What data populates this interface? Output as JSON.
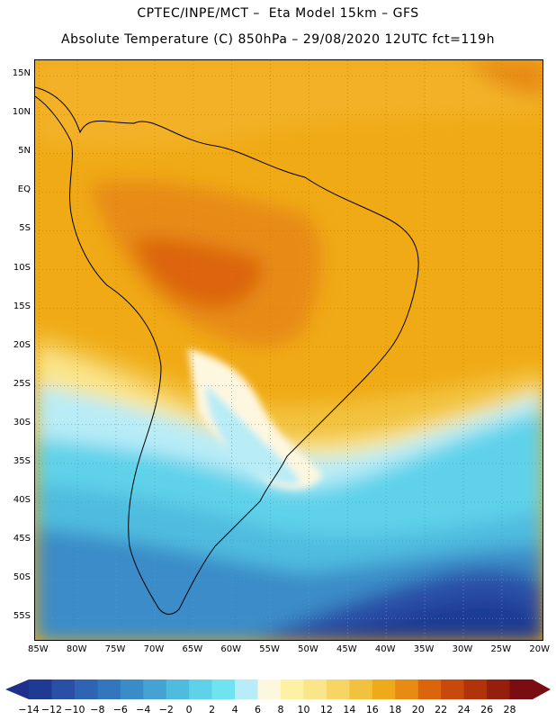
{
  "header": {
    "line1": "CPTEC/INPE/MCT –  Eta Model 15km – GFS",
    "line2": "Absolute Temperature (C) 850hPa – 29/08/2020 12UTC fct=119h"
  },
  "map": {
    "lat_ticks": [
      "15N",
      "10N",
      "5N",
      "EQ",
      "5S",
      "10S",
      "15S",
      "20S",
      "25S",
      "30S",
      "35S",
      "40S",
      "45S",
      "50S",
      "55S"
    ],
    "lon_ticks": [
      "85W",
      "80W",
      "75W",
      "70W",
      "65W",
      "60W",
      "55W",
      "50W",
      "45W",
      "40W",
      "35W",
      "30W",
      "25W",
      "20W"
    ],
    "lat_range": [
      17,
      -58
    ],
    "lon_range": [
      -85.5,
      -19.5
    ]
  },
  "colorbar": {
    "labels": [
      "-14",
      "-12",
      "-10",
      "-8",
      "-6",
      "-4",
      "-2",
      "0",
      "2",
      "4",
      "6",
      "8",
      "10",
      "12",
      "14",
      "16",
      "18",
      "20",
      "22",
      "24",
      "26",
      "28"
    ],
    "under_color": "#1f2f8c",
    "over_color": "#7a0d12",
    "colors": [
      "#1f3a93",
      "#2a4fa6",
      "#2f63b3",
      "#3277bd",
      "#3a8cc8",
      "#44a3d3",
      "#4fbcdf",
      "#5fd2ea",
      "#6fe4f0",
      "#b8ecf7",
      "#fef7e0",
      "#fdf2a3",
      "#fbe58a",
      "#f7d564",
      "#f2c23e",
      "#eeaa19",
      "#e78b12",
      "#dc650c",
      "#c9480b",
      "#b23309",
      "#951f0c",
      "#7a0d12"
    ]
  },
  "accent": {
    "ocean_warm": "#f0aa16",
    "land_hot": "#d9650d"
  }
}
